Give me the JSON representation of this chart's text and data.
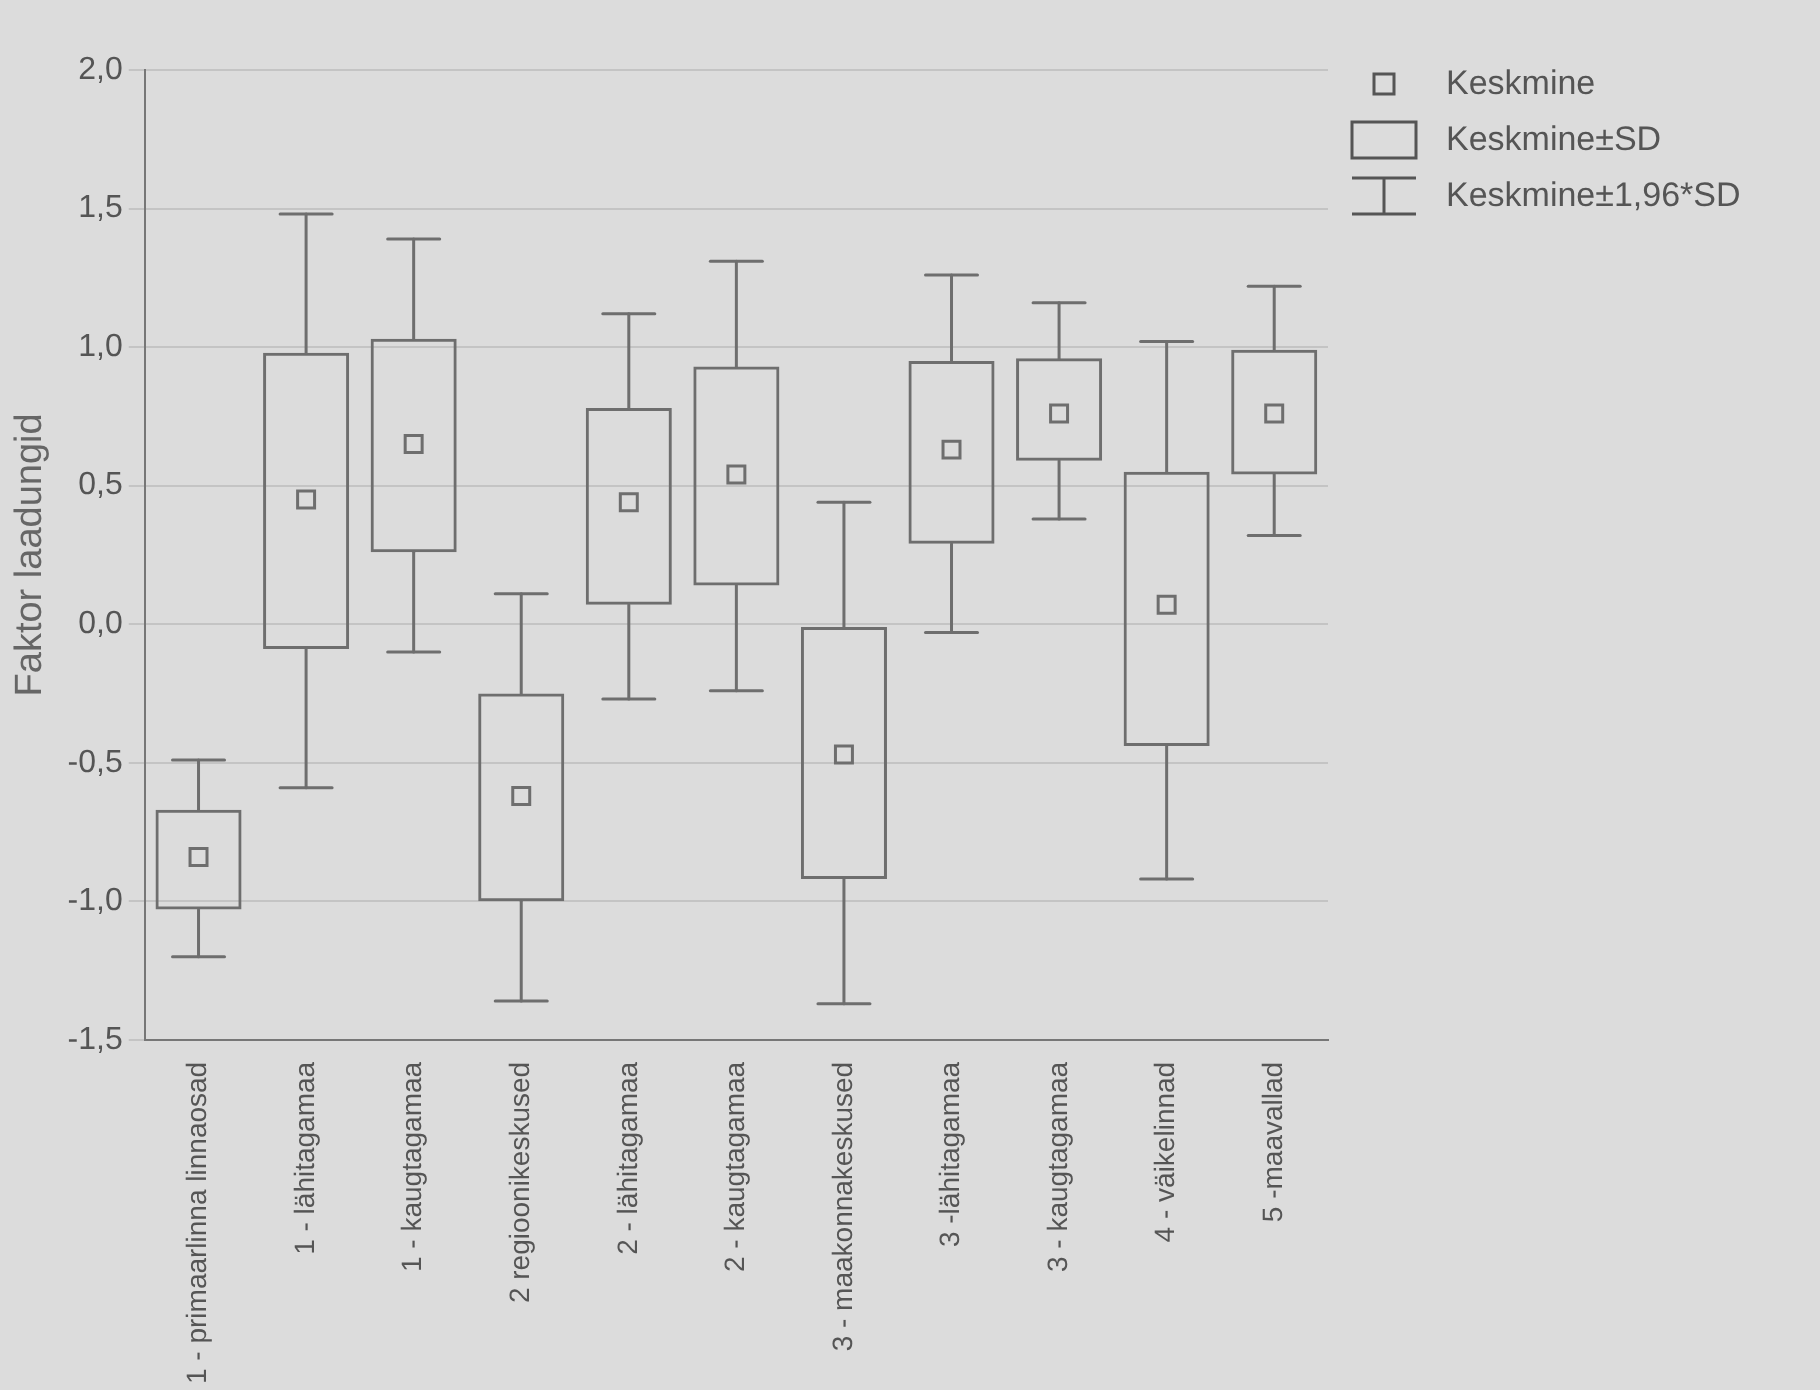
{
  "chart_data": {
    "type": "box",
    "ylabel": "Faktor laadungid",
    "color": "#6e6e6e",
    "grid": "y",
    "marker": "square",
    "categories": [
      "1 - primaarlinna linnaosad",
      "1 - lähitagamaa",
      "1 - kaugtagamaa",
      "2 regioonikeskused",
      "2 - lähitagamaa",
      "2 - kaugtagamaa",
      "3 - maakonnakeskused",
      "3 -lähitagamaa",
      "3 - kaugtagamaa",
      "4 - väikelinnad",
      "5 -maavallad"
    ],
    "boxes": [
      {
        "low": -1.2,
        "q1": -1.03,
        "q3": -0.67,
        "high": -0.49,
        "mean": -0.84
      },
      {
        "low": -0.59,
        "q1": -0.09,
        "q3": 0.98,
        "high": 1.48,
        "mean": 0.45
      },
      {
        "low": -0.1,
        "q1": 0.26,
        "q3": 1.03,
        "high": 1.39,
        "mean": 0.65
      },
      {
        "low": -1.36,
        "q1": -1.0,
        "q3": -0.25,
        "high": 0.11,
        "mean": -0.62
      },
      {
        "low": -0.27,
        "q1": 0.07,
        "q3": 0.78,
        "high": 1.12,
        "mean": 0.44
      },
      {
        "low": -0.24,
        "q1": 0.14,
        "q3": 0.93,
        "high": 1.31,
        "mean": 0.54
      },
      {
        "low": -1.37,
        "q1": -0.92,
        "q3": -0.01,
        "high": 0.44,
        "mean": -0.47
      },
      {
        "low": -0.03,
        "q1": 0.29,
        "q3": 0.95,
        "high": 1.26,
        "mean": 0.63
      },
      {
        "low": 0.38,
        "q1": 0.59,
        "q3": 0.96,
        "high": 1.16,
        "mean": 0.76
      },
      {
        "low": -0.92,
        "q1": -0.44,
        "q3": 0.55,
        "high": 1.02,
        "mean": 0.07
      },
      {
        "low": 0.32,
        "q1": 0.54,
        "q3": 0.99,
        "high": 1.22,
        "mean": 0.76
      }
    ],
    "ylim": [
      -1.5,
      2
    ],
    "yticks": [
      {
        "value": -1.5,
        "label": "-1,5"
      },
      {
        "value": -1,
        "label": "-1,0"
      },
      {
        "value": -0.5,
        "label": "-0,5"
      },
      {
        "value": 0,
        "label": "0,0"
      },
      {
        "value": 0.5,
        "label": "0,5"
      },
      {
        "value": 1,
        "label": "1,0"
      },
      {
        "value": 1.5,
        "label": "1,5"
      },
      {
        "value": 2,
        "label": "2,0"
      }
    ],
    "annotations": [
      "Keskmine",
      "Keskmine±SD",
      "Keskmine±1,96*SD"
    ]
  }
}
